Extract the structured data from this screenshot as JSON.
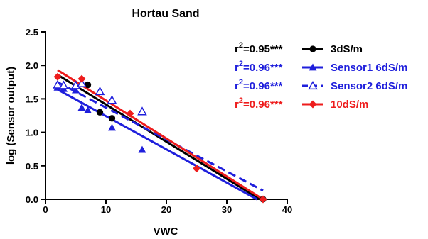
{
  "chart_data": {
    "type": "scatter",
    "title": "Hortau Sand",
    "xlabel": "VWC",
    "ylabel": "log (Sensor output)",
    "xlim": [
      0,
      40
    ],
    "ylim": [
      0,
      2.5
    ],
    "xticks": [
      "0",
      "10",
      "20",
      "30",
      "40"
    ],
    "yticks": [
      "0.0",
      "0.5",
      "1.0",
      "1.5",
      "2.0",
      "2.5"
    ],
    "grid": false,
    "legend_position": "right",
    "series": [
      {
        "name": "3dS/m",
        "r2": "r2=0.95***",
        "r2_base": "r",
        "r2_sup": "2",
        "r2_rest": "=0.95***",
        "color": "#000000",
        "marker": "circle-filled",
        "line": "solid",
        "x": [
          7,
          9,
          11,
          36
        ],
        "y": [
          1.71,
          1.3,
          1.21,
          0.0
        ],
        "fit": [
          [
            2,
            1.86
          ],
          [
            35.5,
            0.0
          ]
        ]
      },
      {
        "name": "Sensor1 6dS/m",
        "r2": "r2=0.96***",
        "r2_base": "r",
        "r2_sup": "2",
        "r2_rest": "=0.96***",
        "color": "#1f1fdc",
        "marker": "triangle-filled",
        "line": "solid",
        "x": [
          2,
          3,
          5,
          6,
          7,
          11,
          16
        ],
        "y": [
          1.67,
          1.65,
          1.63,
          1.37,
          1.33,
          1.07,
          0.74
        ],
        "fit": [
          [
            2,
            1.64
          ],
          [
            35,
            0.0
          ]
        ]
      },
      {
        "name": "Sensor2 6dS/m",
        "r2": "r2=0.96***",
        "r2_base": "r",
        "r2_sup": "2",
        "r2_rest": "=0.96***",
        "color": "#1f1fdc",
        "marker": "triangle-open",
        "line": "dashed",
        "x": [
          2,
          3,
          5,
          6,
          9,
          11,
          16
        ],
        "y": [
          1.71,
          1.7,
          1.7,
          1.73,
          1.61,
          1.48,
          1.31
        ],
        "fit": [
          [
            2,
            1.75
          ],
          [
            36,
            0.13
          ]
        ]
      },
      {
        "name": "10dS/m",
        "r2": "r2=0.96***",
        "r2_base": "r",
        "r2_sup": "2",
        "r2_rest": "=0.96***",
        "color": "#ee1c1c",
        "marker": "diamond-filled",
        "line": "solid",
        "x": [
          2,
          6,
          14,
          25,
          36
        ],
        "y": [
          1.83,
          1.8,
          1.28,
          0.46,
          0.0
        ],
        "fit": [
          [
            2,
            1.93
          ],
          [
            36,
            0.0
          ]
        ]
      }
    ]
  }
}
